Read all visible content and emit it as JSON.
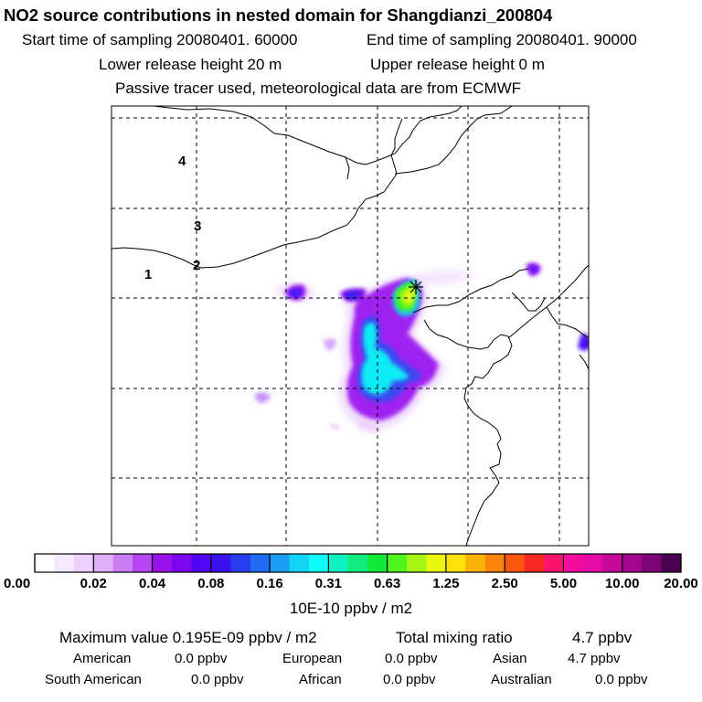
{
  "header": {
    "title": "NO2 source contributions in nested domain for Shangdianzi_200804",
    "start_label": "Start time of sampling 20080401. 60000",
    "end_label": "End time of sampling 20080401. 90000",
    "lower_label": "Lower release height   20 m",
    "upper_label": "Upper release height    0 m",
    "tracer_line": "Passive tracer used, meteorological data are from ECMWF"
  },
  "map": {
    "region_labels": [
      "1",
      "2",
      "3",
      "4"
    ],
    "site_marker": "star-icon"
  },
  "colorbar": {
    "colors": [
      "#ffffff",
      "#f7e9fd",
      "#ecd0fb",
      "#dfb0f9",
      "#cc7df5",
      "#b646f1",
      "#9a12ea",
      "#7c06f0",
      "#5204f7",
      "#3a10f3",
      "#2a3cf0",
      "#1f6cf2",
      "#1a9ff3",
      "#14d2f4",
      "#0ffcfa",
      "#10f2c0",
      "#12eb7e",
      "#10e83a",
      "#4ef41b",
      "#a3f615",
      "#eaf90d",
      "#fde30b",
      "#fbb309",
      "#fa850a",
      "#f95610",
      "#f62a23",
      "#fb136d",
      "#f20d9d",
      "#e10ca6",
      "#c40899",
      "#a4058e",
      "#7c0576",
      "#4b024e"
    ],
    "tick_labels": [
      "0.00",
      "0.02",
      "0.04",
      "0.08",
      "0.16",
      "0.31",
      "0.63",
      "1.25",
      "2.50",
      "5.00",
      "10.00",
      "20.00"
    ],
    "unit": "10E-10 ppbv / m2"
  },
  "footer": {
    "max_text": "Maximum value  0.195E-09 ppbv / m2",
    "total_text": "Total mixing ratio",
    "total_value": "4.7 ppbv",
    "rows": [
      [
        {
          "name": "American",
          "value": "0.0 ppbv"
        },
        {
          "name": "European",
          "value": "0.0 ppbv"
        },
        {
          "name": "Asian",
          "value": "4.7 ppbv"
        }
      ],
      [
        {
          "name": "South American",
          "value": "0.0 ppbv"
        },
        {
          "name": "African",
          "value": "0.0 ppbv"
        },
        {
          "name": "Australian",
          "value": "0.0 ppbv"
        }
      ]
    ]
  }
}
